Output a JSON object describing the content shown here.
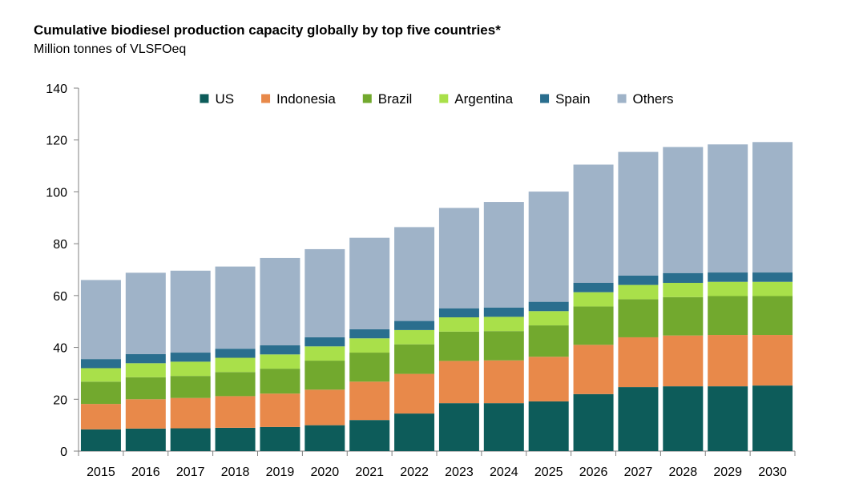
{
  "chart_data": {
    "type": "bar",
    "stacked": true,
    "title": "Cumulative biodiesel production capacity globally by top five countries*",
    "subtitle": "Million tonnes of VLSFOeq",
    "xlabel": "",
    "ylabel": "",
    "ylim": [
      0,
      140
    ],
    "yticks": [
      0,
      20,
      40,
      60,
      80,
      100,
      120,
      140
    ],
    "grid": false,
    "legend_position": "top-center",
    "categories": [
      "2015",
      "2016",
      "2017",
      "2018",
      "2019",
      "2020",
      "2021",
      "2022",
      "2023",
      "2024",
      "2025",
      "2026",
      "2027",
      "2028",
      "2029",
      "2030"
    ],
    "series": [
      {
        "name": "US",
        "color": "#0d5c5a",
        "values": [
          8.4,
          8.7,
          8.8,
          9.0,
          9.3,
          10.0,
          12.0,
          14.5,
          18.5,
          18.5,
          19.2,
          22.0,
          24.7,
          25.0,
          25.0,
          25.3
        ]
      },
      {
        "name": "Indonesia",
        "color": "#e8894a",
        "values": [
          9.8,
          11.3,
          11.7,
          12.2,
          12.9,
          13.7,
          14.8,
          15.3,
          16.3,
          16.5,
          17.2,
          19.0,
          19.2,
          19.6,
          19.8,
          19.5
        ]
      },
      {
        "name": "Brazil",
        "color": "#72a92e",
        "values": [
          8.6,
          8.5,
          8.5,
          9.3,
          9.6,
          11.2,
          11.2,
          11.4,
          11.3,
          11.3,
          12.1,
          14.8,
          14.7,
          14.8,
          15.0,
          15.0
        ]
      },
      {
        "name": "Argentina",
        "color": "#a9e04a",
        "values": [
          5.2,
          5.4,
          5.5,
          5.5,
          5.5,
          5.5,
          5.5,
          5.5,
          5.5,
          5.5,
          5.5,
          5.5,
          5.5,
          5.5,
          5.5,
          5.5
        ]
      },
      {
        "name": "Spain",
        "color": "#2a6e8e",
        "values": [
          3.5,
          3.5,
          3.5,
          3.5,
          3.5,
          3.5,
          3.5,
          3.5,
          3.5,
          3.6,
          3.6,
          3.6,
          3.6,
          3.8,
          3.6,
          3.6
        ]
      },
      {
        "name": "Others",
        "color": "#9fb3c8",
        "values": [
          30.5,
          31.4,
          31.6,
          31.7,
          33.7,
          34.0,
          35.3,
          36.2,
          38.7,
          40.7,
          42.5,
          45.6,
          47.7,
          48.6,
          49.4,
          50.3
        ]
      }
    ]
  }
}
